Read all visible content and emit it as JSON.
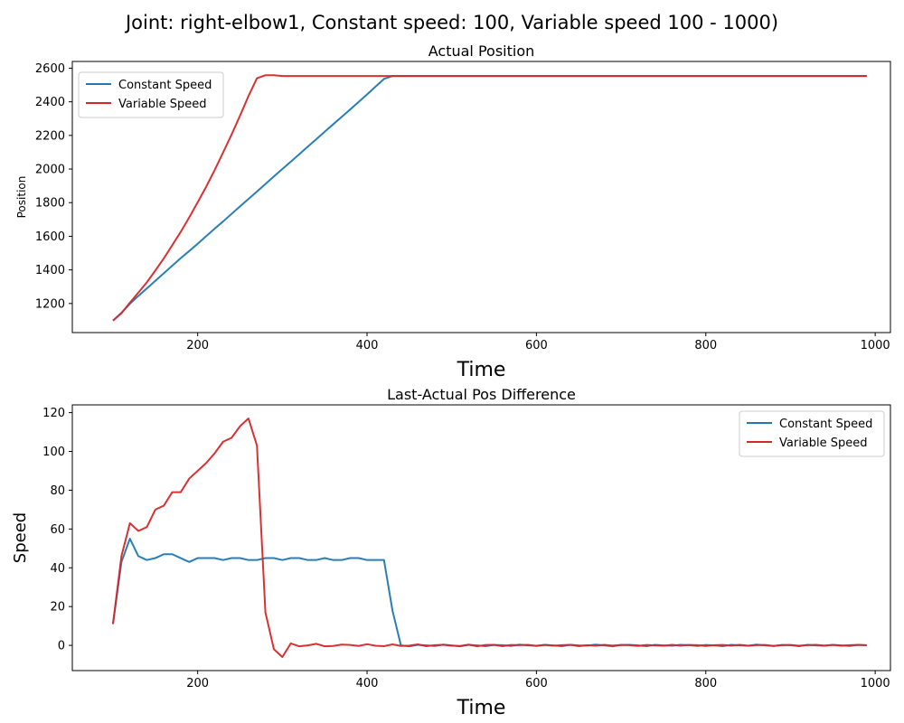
{
  "figure": {
    "suptitle": "Joint: right-elbow1, Constant speed: 100, Variable speed 100 - 1000)",
    "colors": {
      "constant": "#1f77b4",
      "variable": "#d62728"
    }
  },
  "chart_data": [
    {
      "type": "line",
      "title": "Actual Position",
      "xlabel": "Time",
      "ylabel": "Position",
      "xlim": [
        52,
        1018
      ],
      "ylim": [
        1027,
        2640
      ],
      "xticks": [
        200,
        400,
        600,
        800,
        1000
      ],
      "yticks": [
        1200,
        1400,
        1600,
        1800,
        2000,
        2200,
        2400,
        2600
      ],
      "grid": false,
      "legend_position": "upper left",
      "series": [
        {
          "name": "Constant Speed",
          "color": "#1f77b4",
          "x": [
            100,
            110,
            120,
            130,
            140,
            150,
            160,
            170,
            180,
            190,
            200,
            210,
            220,
            230,
            240,
            250,
            260,
            270,
            280,
            290,
            300,
            310,
            320,
            330,
            340,
            350,
            360,
            370,
            380,
            390,
            400,
            410,
            420,
            430,
            440,
            450,
            500,
            550,
            600,
            650,
            700,
            750,
            800,
            850,
            900,
            950,
            990
          ],
          "y": [
            1098,
            1145,
            1198,
            1245,
            1290,
            1335,
            1380,
            1425,
            1470,
            1512,
            1555,
            1600,
            1645,
            1688,
            1733,
            1778,
            1822,
            1866,
            1911,
            1956,
            2000,
            2044,
            2088,
            2133,
            2177,
            2222,
            2266,
            2310,
            2354,
            2399,
            2444,
            2490,
            2536,
            2553,
            2553,
            2553,
            2553,
            2553,
            2553,
            2553,
            2553,
            2553,
            2553,
            2553,
            2553,
            2553,
            2553
          ]
        },
        {
          "name": "Variable Speed",
          "color": "#d62728",
          "x": [
            100,
            110,
            120,
            130,
            140,
            150,
            160,
            170,
            180,
            190,
            200,
            210,
            220,
            230,
            240,
            250,
            260,
            270,
            280,
            290,
            300,
            310,
            320,
            330,
            340,
            350,
            400,
            450,
            500,
            550,
            600,
            650,
            700,
            750,
            800,
            850,
            900,
            950,
            990
          ],
          "y": [
            1098,
            1142,
            1205,
            1265,
            1326,
            1396,
            1468,
            1547,
            1626,
            1712,
            1802,
            1894,
            1993,
            2098,
            2205,
            2317,
            2434,
            2540,
            2558,
            2558,
            2553,
            2553,
            2553,
            2553,
            2553,
            2553,
            2553,
            2553,
            2553,
            2553,
            2553,
            2553,
            2553,
            2553,
            2553,
            2553,
            2553,
            2553,
            2553
          ]
        }
      ]
    },
    {
      "type": "line",
      "title": "Last-Actual Pos Difference",
      "xlabel": "Time",
      "ylabel": "Speed",
      "xlim": [
        52,
        1018
      ],
      "ylim": [
        -13,
        124
      ],
      "xticks": [
        200,
        400,
        600,
        800,
        1000
      ],
      "yticks": [
        0,
        20,
        40,
        60,
        80,
        100,
        120
      ],
      "grid": false,
      "legend_position": "upper right",
      "series": [
        {
          "name": "Constant Speed",
          "color": "#1f77b4",
          "x": [
            100,
            110,
            120,
            130,
            140,
            150,
            160,
            170,
            180,
            190,
            200,
            210,
            220,
            230,
            240,
            250,
            260,
            270,
            280,
            290,
            300,
            310,
            320,
            330,
            340,
            350,
            360,
            370,
            380,
            390,
            400,
            410,
            420,
            430,
            440,
            450,
            460,
            470,
            480,
            490,
            500,
            510,
            520,
            530,
            540,
            550,
            560,
            570,
            580,
            590,
            600,
            610,
            620,
            630,
            640,
            650,
            660,
            670,
            680,
            690,
            700,
            710,
            720,
            730,
            740,
            750,
            760,
            770,
            780,
            790,
            800,
            810,
            820,
            830,
            840,
            850,
            860,
            870,
            880,
            890,
            900,
            910,
            920,
            930,
            940,
            950,
            960,
            970,
            980,
            990
          ],
          "y": [
            11,
            43,
            55,
            46,
            44,
            45,
            47,
            47,
            45,
            43,
            45,
            45,
            45,
            44,
            45,
            45,
            44,
            44,
            45,
            45,
            44,
            45,
            45,
            44,
            44,
            45,
            44,
            44,
            45,
            45,
            44,
            44,
            44,
            18,
            0,
            -0.5,
            0.3,
            0,
            -0.3,
            0.4,
            0,
            -0.5,
            0.3,
            0,
            -0.4,
            0.2,
            0.1,
            -0.3,
            0.4,
            0,
            -0.2,
            0.3,
            0,
            -0.4,
            0.3,
            0,
            -0.1,
            0.4,
            0,
            -0.5,
            0.2,
            0.3,
            0,
            -0.4,
            0.3,
            0,
            -0.2,
            0.3,
            0.1,
            -0.3,
            0.2,
            0,
            -0.4,
            0.3,
            0,
            -0.2,
            0.4,
            0,
            -0.3,
            0.2,
            0.1,
            -0.4,
            0.3,
            0,
            -0.2,
            0.3,
            0,
            -0.3,
            0.2,
            0
          ]
        },
        {
          "name": "Variable Speed",
          "color": "#d62728",
          "x": [
            100,
            110,
            120,
            130,
            140,
            150,
            160,
            170,
            180,
            190,
            200,
            210,
            220,
            230,
            240,
            250,
            260,
            270,
            280,
            290,
            300,
            310,
            320,
            330,
            340,
            350,
            360,
            370,
            380,
            390,
            400,
            410,
            420,
            430,
            440,
            450,
            460,
            470,
            480,
            490,
            500,
            510,
            520,
            530,
            540,
            550,
            560,
            570,
            580,
            590,
            600,
            610,
            620,
            630,
            640,
            650,
            660,
            670,
            680,
            690,
            700,
            710,
            720,
            730,
            740,
            750,
            760,
            770,
            780,
            790,
            800,
            810,
            820,
            830,
            840,
            850,
            860,
            870,
            880,
            890,
            900,
            910,
            920,
            930,
            940,
            950,
            960,
            970,
            980,
            990
          ],
          "y": [
            11,
            46,
            63,
            59,
            61,
            70,
            72,
            79,
            79,
            86,
            90,
            94,
            99,
            105,
            107,
            113,
            117,
            103,
            17,
            -2,
            -6,
            1,
            -0.5,
            0,
            0.8,
            -0.5,
            -0.3,
            0.4,
            0.2,
            -0.3,
            0.6,
            -0.2,
            -0.4,
            0.5,
            -0.3,
            -0.1,
            0.5,
            -0.4,
            0.1,
            0.3,
            -0.2,
            -0.3,
            0.4,
            -0.5,
            0.2,
            0.3,
            -0.4,
            0.2,
            0.1,
            0.3,
            -0.3,
            0.2,
            -0.2,
            0.1,
            0.3,
            -0.4,
            0.1,
            -0.2,
            0.3,
            -0.1,
            0.2,
            0.1,
            -0.3,
            0.2,
            0,
            -0.2,
            0.3,
            -0.1,
            0.2,
            0.1,
            -0.3,
            0.1,
            0.2,
            -0.1,
            0.3,
            -0.2,
            0.1,
            0.2,
            -0.3,
            0.1,
            0.2,
            -0.2,
            0.1,
            0.3,
            -0.1,
            0.2,
            -0.2,
            0.1,
            0.3,
            0.1
          ]
        }
      ]
    }
  ]
}
